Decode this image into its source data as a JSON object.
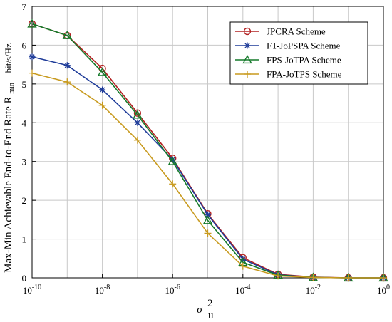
{
  "chart_data": {
    "type": "line",
    "x_tick_labels": [
      {
        "base": "10",
        "exp": "-10"
      },
      {
        "base": "10",
        "exp": "-8"
      },
      {
        "base": "10",
        "exp": "-6"
      },
      {
        "base": "10",
        "exp": "-4"
      },
      {
        "base": "10",
        "exp": "-2"
      },
      {
        "base": "10",
        "exp": "0"
      }
    ],
    "x_tick_values": [
      1e-10,
      1e-08,
      1e-06,
      0.0001,
      0.01,
      1
    ],
    "y_ticks": [
      0,
      1,
      2,
      3,
      4,
      5,
      6,
      7
    ],
    "xlim": [
      1e-10,
      1
    ],
    "ylim": [
      0,
      7
    ],
    "xscale": "log",
    "grid": true,
    "legend_position": "top-right",
    "xlabel": {
      "symbol": "σ",
      "sub": "u",
      "sup": "2"
    },
    "ylabel": {
      "main": "Max-Min Achievable End-to-End Rate R",
      "sub": "min",
      "unit": "bit/s/Hz"
    },
    "x": [
      1e-10,
      1e-09,
      1e-08,
      1e-07,
      1e-06,
      1e-05,
      0.0001,
      0.001,
      0.01,
      0.1,
      1
    ],
    "series": [
      {
        "name": "JPCRA Scheme",
        "color": "#b22222",
        "marker": "circle",
        "values": [
          6.55,
          6.25,
          5.4,
          4.25,
          3.08,
          1.65,
          0.52,
          0.09,
          0.02,
          0.0,
          0.0
        ]
      },
      {
        "name": "FT-JoPSPA Scheme",
        "color": "#1f3c99",
        "marker": "asterisk",
        "values": [
          5.7,
          5.48,
          4.85,
          4.0,
          3.05,
          1.63,
          0.48,
          0.08,
          0.01,
          0.0,
          0.0
        ]
      },
      {
        "name": "FPS-JoTPA Scheme",
        "color": "#157a2a",
        "marker": "triangle",
        "values": [
          6.55,
          6.25,
          5.3,
          4.2,
          3.0,
          1.48,
          0.4,
          0.07,
          0.01,
          0.0,
          0.0
        ]
      },
      {
        "name": "FPA-JoTPS Scheme",
        "color": "#c89a1e",
        "marker": "plus",
        "values": [
          5.28,
          5.05,
          4.45,
          3.55,
          2.42,
          1.15,
          0.3,
          0.05,
          0.01,
          0.0,
          0.0
        ]
      }
    ]
  }
}
